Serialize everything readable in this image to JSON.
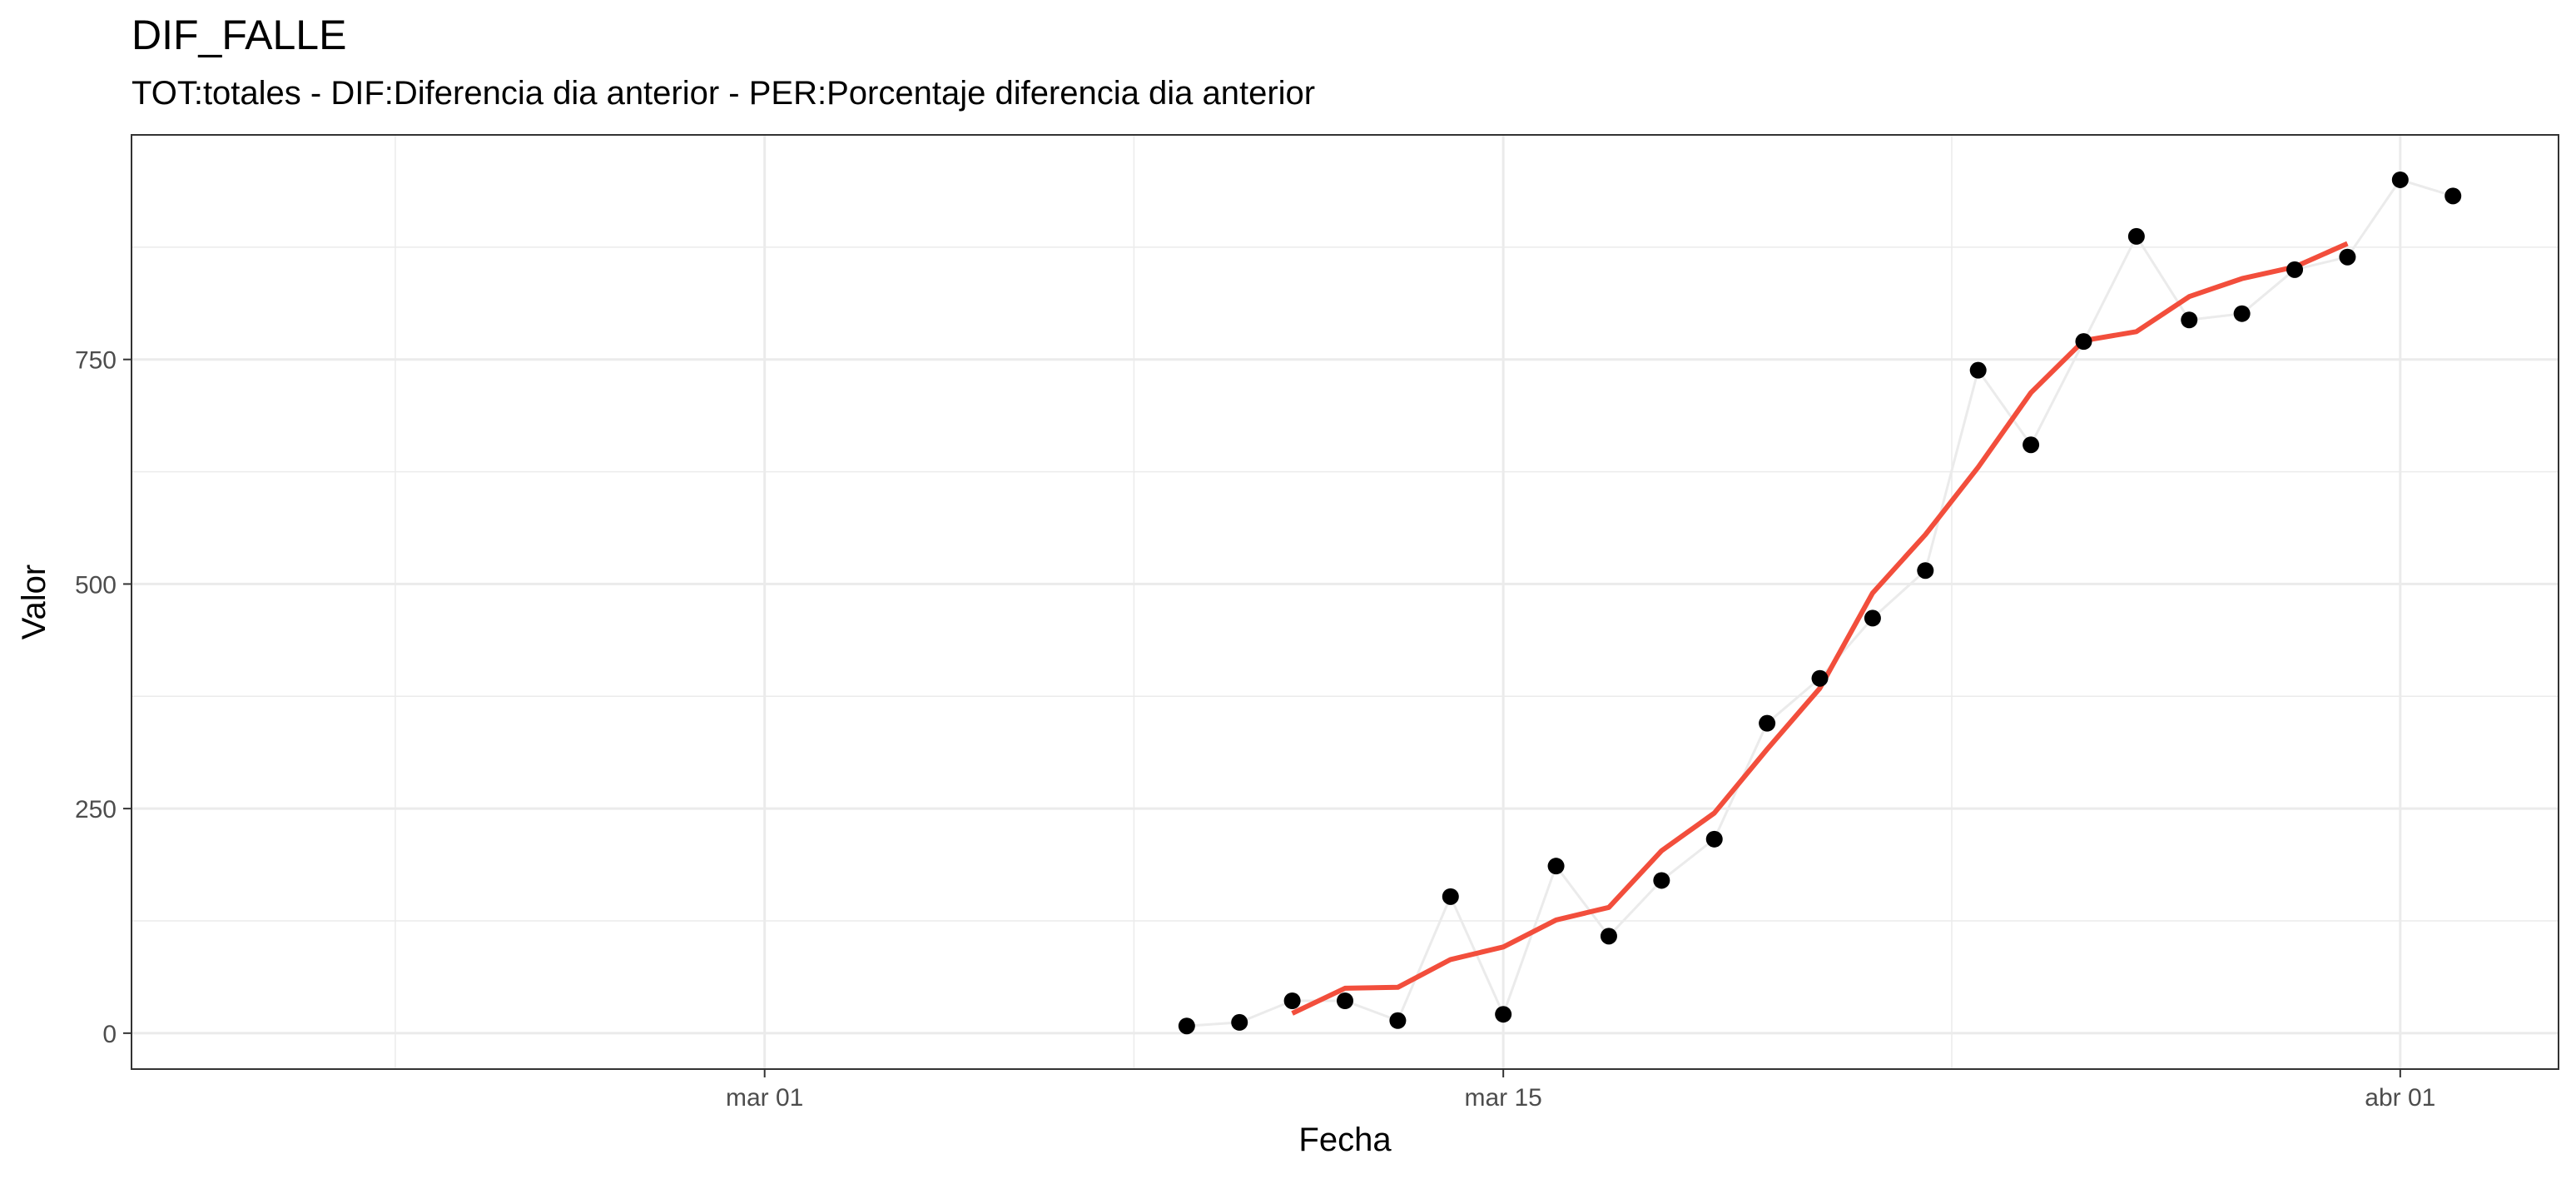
{
  "chart_data": {
    "type": "line",
    "title": "DIF_FALLE",
    "subtitle": "TOT:totales - DIF:Diferencia dia anterior - PER:Porcentaje diferencia dia anterior",
    "xlabel": "Fecha",
    "ylabel": "Valor",
    "x_ticks": [
      {
        "date": "2020-03-01",
        "label": "mar 01"
      },
      {
        "date": "2020-03-15",
        "label": "mar 15"
      },
      {
        "date": "2020-04-01",
        "label": "abr 01"
      }
    ],
    "y_ticks": [
      0,
      250,
      500,
      750
    ],
    "xlim": [
      "2020-02-18",
      "2020-04-04"
    ],
    "ylim": [
      -40,
      1000
    ],
    "grid": true,
    "series": [
      {
        "kind": "points",
        "color": "#000000",
        "connector_color": "#ebebeb",
        "x": [
          "2020-03-09",
          "2020-03-10",
          "2020-03-11",
          "2020-03-12",
          "2020-03-13",
          "2020-03-14",
          "2020-03-15",
          "2020-03-16",
          "2020-03-17",
          "2020-03-18",
          "2020-03-19",
          "2020-03-20",
          "2020-03-21",
          "2020-03-22",
          "2020-03-23",
          "2020-03-24",
          "2020-03-25",
          "2020-03-26",
          "2020-03-27",
          "2020-03-28",
          "2020-03-29",
          "2020-03-30",
          "2020-03-31",
          "2020-04-01",
          "2020-04-02"
        ],
        "values": [
          8,
          12,
          36,
          36,
          14,
          152,
          21,
          186,
          108,
          170,
          216,
          345,
          395,
          462,
          515,
          738,
          655,
          770,
          887,
          794,
          801,
          850,
          864,
          950,
          932
        ]
      },
      {
        "kind": "line",
        "color": "#f24e3c",
        "x": [
          "2020-03-11",
          "2020-03-12",
          "2020-03-13",
          "2020-03-14",
          "2020-03-15",
          "2020-03-16",
          "2020-03-17",
          "2020-03-18",
          "2020-03-19",
          "2020-03-20",
          "2020-03-21",
          "2020-03-22",
          "2020-03-23",
          "2020-03-24",
          "2020-03-25",
          "2020-03-26",
          "2020-03-27",
          "2020-03-28",
          "2020-03-29",
          "2020-03-30",
          "2020-03-31"
        ],
        "values": [
          22,
          50,
          51,
          82,
          96,
          126,
          140,
          203,
          245,
          316,
          384,
          490,
          555,
          630,
          713,
          771,
          781,
          820,
          840,
          853,
          879
        ]
      }
    ]
  }
}
